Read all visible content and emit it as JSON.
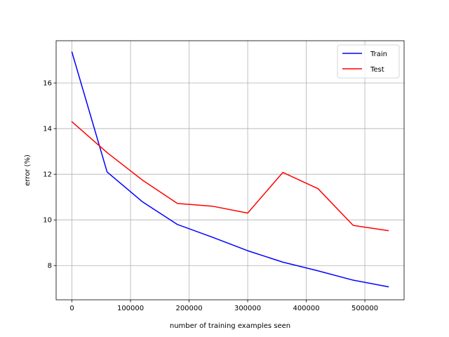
{
  "chart_data": {
    "type": "line",
    "title": "",
    "xlabel": "number of training examples seen",
    "ylabel": "error (%)",
    "xlim": [
      -27000,
      567000
    ],
    "ylim": [
      6.5,
      17.85
    ],
    "xticks": [
      0,
      100000,
      200000,
      300000,
      400000,
      500000
    ],
    "yticks": [
      8,
      10,
      12,
      14,
      16
    ],
    "grid": true,
    "legend_position": "top-right",
    "x": [
      0,
      60000,
      120000,
      180000,
      240000,
      300000,
      360000,
      420000,
      480000,
      540000
    ],
    "series": [
      {
        "name": "Train",
        "color": "#0000ff",
        "values": [
          17.35,
          12.1,
          10.8,
          9.8,
          9.24,
          8.65,
          8.15,
          7.77,
          7.36,
          7.07
        ]
      },
      {
        "name": "Test",
        "color": "#ff0000",
        "values": [
          14.3,
          12.95,
          11.75,
          10.72,
          10.6,
          10.3,
          12.08,
          11.37,
          9.76,
          9.53
        ]
      }
    ]
  }
}
